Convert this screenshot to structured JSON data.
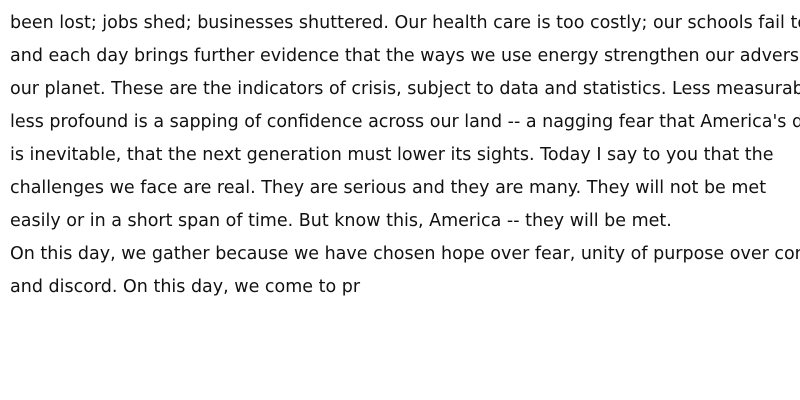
{
  "document": {
    "lines": [
      "been lost; jobs shed; businesses shuttered. Our health care is too costly; our schools fail too",
      "and each day brings further evidence that the ways we use energy strengthen our adversaries",
      "our planet. These are the indicators of crisis, subject to data and statistics. Less measurable b",
      "less profound is a sapping of confidence across our land -- a nagging fear that America's de",
      "is inevitable, that the next generation must lower its sights. Today I say to you that the",
      "challenges we face are real. They are serious and they are many. They will not be met",
      "easily or in a short span of time. But know this, America -- they will be met.",
      "On this day, we gather because we have chosen hope over fear, unity of purpose over confli",
      "and discord. On this day, we come to pr"
    ]
  }
}
